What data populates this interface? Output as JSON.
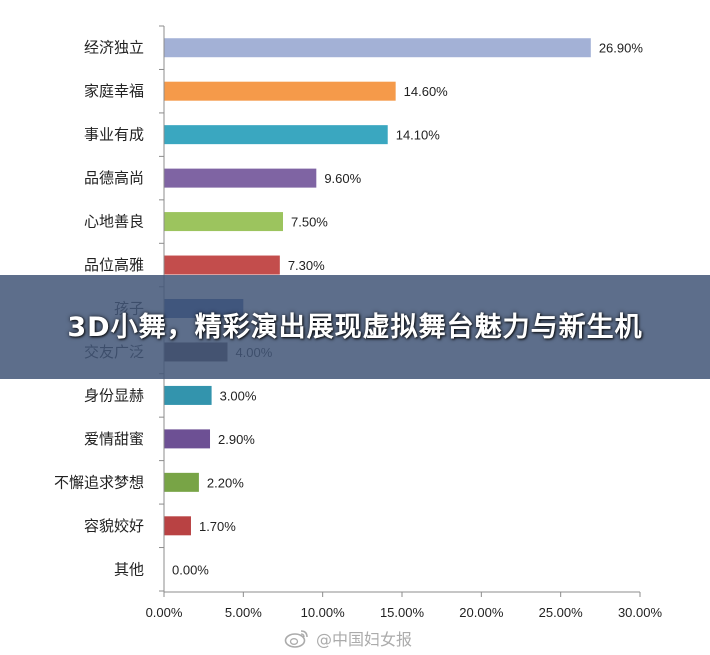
{
  "chart_data": {
    "type": "bar",
    "orientation": "horizontal",
    "categories": [
      "经济独立",
      "家庭幸福",
      "事业有成",
      "品德高尚",
      "心地善良",
      "品位高雅",
      "孩子",
      "交友广泛",
      "身份显赫",
      "爱情甜蜜",
      "不懈追求梦想",
      "容貌姣好",
      "其他"
    ],
    "values": [
      26.9,
      14.6,
      14.1,
      9.6,
      7.5,
      7.3,
      5.0,
      4.0,
      3.0,
      2.9,
      2.2,
      1.7,
      0.0
    ],
    "value_labels": [
      "26.90%",
      "14.60%",
      "14.10%",
      "9.60%",
      "7.50%",
      "7.30%",
      "",
      "4.00%",
      "3.00%",
      "2.90%",
      "2.20%",
      "1.70%",
      "0.00%"
    ],
    "colors": [
      "#a3b1d6",
      "#f59a4a",
      "#3aa7c0",
      "#7f64a3",
      "#9cc45e",
      "#c34d4c",
      "#36549a",
      "#4e4047",
      "#3394ad",
      "#6d5094",
      "#78a446",
      "#b94243",
      "#999999"
    ],
    "xlim": [
      0,
      30
    ],
    "x_ticks": [
      "0.00%",
      "5.00%",
      "10.00%",
      "15.00%",
      "20.00%",
      "25.00%",
      "30.00%"
    ],
    "grid": false,
    "title": "",
    "xlabel": "",
    "ylabel": ""
  },
  "overlay": {
    "title": "3D小舞，精彩演出展现虚拟舞台魅力与新生机"
  },
  "watermark": {
    "text": "@中国妇女报",
    "icon": "weibo-icon"
  }
}
